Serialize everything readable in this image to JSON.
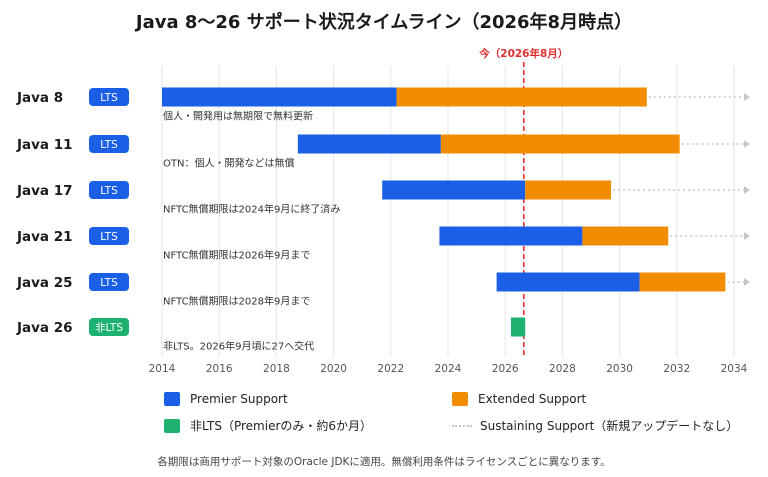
{
  "title": "Java 8〜26 サポート状況タイムライン（2026年8月時点）",
  "now_label": "今（2026年8月）",
  "footnote": "各期限は商用サポート対象のOracle JDKに適用。無償利用条件はライセンスごとに異なります。",
  "colors": {
    "premier": "#1a5fe6",
    "extended": "#f28c00",
    "non_lts": "#1db272",
    "lts_badge": "#1a5fe6",
    "non_lts_badge": "#1db272",
    "now_line": "#e03131",
    "grid": "#e6e6e6",
    "sustaining": "#c8c8c8"
  },
  "legend": {
    "premier": "Premier Support",
    "extended": "Extended Support",
    "non_lts": "非LTS（Premierのみ・約6か月）",
    "sustaining": "Sustaining Support（新規アップデートなし）"
  },
  "chart_data": {
    "type": "gantt",
    "title": "Java 8〜26 サポート状況タイムライン（2026年8月時点）",
    "x_ticks": [
      "2014",
      "2016",
      "2018",
      "2020",
      "2022",
      "2024",
      "2026",
      "2028",
      "2030",
      "2032",
      "2034"
    ],
    "xlim": [
      2014,
      2034.2
    ],
    "now": 2026.65,
    "rows": [
      {
        "name": "Java 8",
        "badge": "LTS",
        "premier": [
          2014.0,
          2022.2
        ],
        "extended": [
          2022.2,
          2030.95
        ],
        "sustaining": true,
        "note": "個人・開発用は無期限で無料更新"
      },
      {
        "name": "Java 11",
        "badge": "LTS",
        "premier": [
          2018.75,
          2023.75
        ],
        "extended": [
          2023.75,
          2032.1
        ],
        "sustaining": true,
        "note": "OTN：個人・開発などは無償"
      },
      {
        "name": "Java 17",
        "badge": "LTS",
        "premier": [
          2021.7,
          2026.7
        ],
        "extended": [
          2026.7,
          2029.7
        ],
        "sustaining": true,
        "note": "NFTC無償期限は2024年9月に終了済み"
      },
      {
        "name": "Java 21",
        "badge": "LTS",
        "premier": [
          2023.7,
          2028.7
        ],
        "extended": [
          2028.7,
          2031.7
        ],
        "sustaining": true,
        "note": "NFTC無償期限は2026年9月まで"
      },
      {
        "name": "Java 25",
        "badge": "LTS",
        "premier": [
          2025.7,
          2030.7
        ],
        "extended": [
          2030.7,
          2033.7
        ],
        "sustaining": true,
        "note": "NFTC無償期限は2028年9月まで"
      },
      {
        "name": "Java 26",
        "badge": "非LTS",
        "non_lts": [
          2026.2,
          2026.7
        ],
        "sustaining": false,
        "note": "非LTS。2026年9月頃に27へ交代"
      }
    ]
  }
}
